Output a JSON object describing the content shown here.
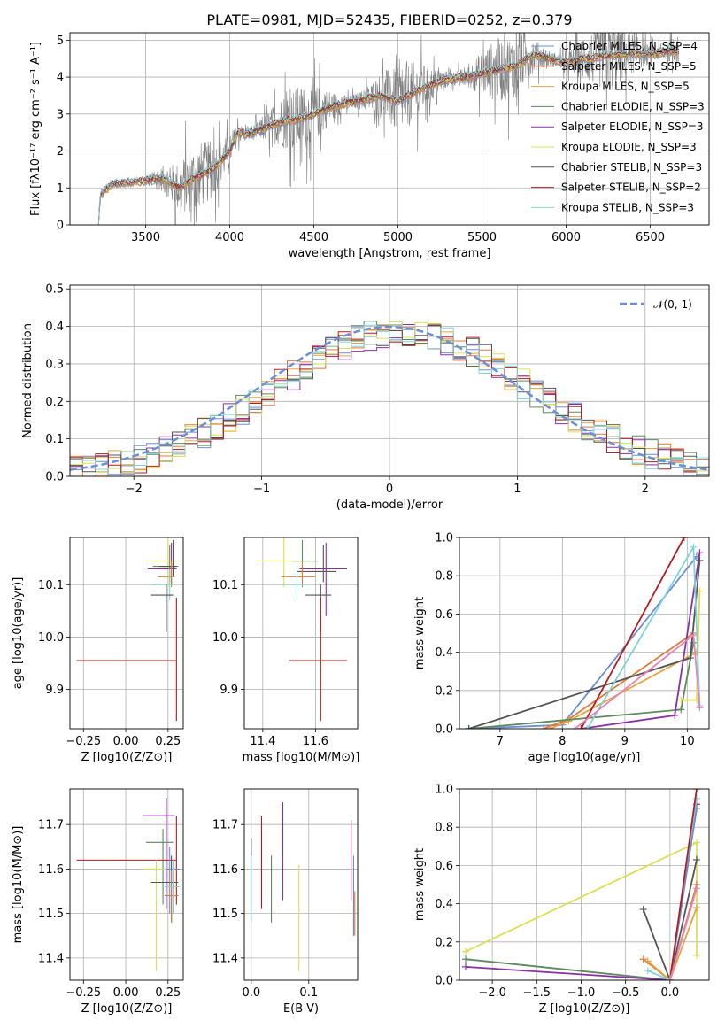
{
  "colors": {
    "chabrier_miles": "#6a8fd8",
    "salpeter_miles": "#e1793a",
    "kroupa_miles": "#e8a33c",
    "chabrier_elodie": "#5d8a5d",
    "salpeter_elodie": "#8b2fa8",
    "kroupa_elodie": "#dbe052",
    "chabrier_stelib": "#555555",
    "salpeter_stelib": "#b71c1c",
    "kroupa_stelib": "#7fd4dc",
    "pink": "#e882b7",
    "data": "#808080",
    "normal": "#6a8fd8",
    "grid": "#b0b0b0"
  },
  "chart_data": [
    {
      "type": "line",
      "title": "PLATE=0981, MJD=52435, FIBERID=0252, z=0.379",
      "xlabel": "wavelength [Angstrom, rest frame]",
      "ylabel": "Flux [fλ10⁻¹⁷ erg cm⁻² s⁻¹ A⁻¹]",
      "xlim": [
        3050,
        6850
      ],
      "ylim": [
        0,
        5.2
      ],
      "xticks": [
        3500,
        4000,
        4500,
        5000,
        5500,
        6000,
        6500
      ],
      "yticks": [
        0,
        1,
        2,
        3,
        4,
        5
      ],
      "legend": {
        "placement": "upper right",
        "entries": [
          "Chabrier MILES, N_SSP=4",
          "Salpeter MILES, N_SSP=5",
          "Kroupa MILES, N_SSP=5",
          "Chabrier ELODIE, N_SSP=3",
          "Salpeter ELODIE, N_SSP=3",
          "Kroupa ELODIE, N_SSP=3",
          "Chabrier STELIB, N_SSP=3",
          "Salpeter STELIB, N_SSP=2",
          "Kroupa STELIB, N_SSP=3"
        ]
      },
      "model_continuum": {
        "x": [
          3220,
          3230,
          3300,
          3400,
          3500,
          3600,
          3700,
          3800,
          3900,
          3950,
          4000,
          4050,
          4100,
          4200,
          4300,
          4400,
          4500,
          4600,
          4700,
          4800,
          4900,
          5000,
          5100,
          5200,
          5300,
          5400,
          5500,
          5600,
          5700,
          5800,
          5900,
          6000,
          6100,
          6200,
          6300,
          6400,
          6500,
          6600,
          6670
        ],
        "y": [
          0.0,
          0.8,
          1.1,
          1.15,
          1.2,
          1.25,
          1.0,
          1.3,
          1.5,
          1.75,
          2.0,
          2.5,
          2.45,
          2.6,
          2.8,
          2.85,
          3.0,
          3.2,
          3.3,
          3.4,
          3.5,
          3.35,
          3.6,
          3.8,
          3.95,
          4.0,
          4.1,
          4.2,
          4.3,
          4.6,
          4.5,
          4.4,
          4.5,
          4.55,
          4.6,
          4.65,
          4.6,
          4.7,
          4.7
        ]
      },
      "data_region": [
        3500,
        6670
      ]
    },
    {
      "type": "line",
      "xlabel": "(data-model)/error",
      "ylabel": "Normed distribution",
      "xlim": [
        -2.5,
        2.5
      ],
      "ylim": [
        0,
        0.51
      ],
      "xticks": [
        -2,
        -1,
        0,
        1,
        2
      ],
      "yticks": [
        0.0,
        0.1,
        0.2,
        0.3,
        0.4,
        0.5
      ],
      "legend": {
        "placement": "upper right",
        "entries": [
          "𝒩(0, 1)"
        ]
      },
      "series_note": "nine step histograms plus dashed standard normal curve"
    },
    {
      "type": "scatter",
      "xlabel": "Z [log10(Z/Z⊙)]",
      "ylabel": "age  [log10(age/yr)]",
      "xlim": [
        -0.33,
        0.34
      ],
      "ylim": [
        9.825,
        10.19
      ],
      "xticks": [
        -0.25,
        0.0,
        0.25
      ],
      "yticks": [
        9.9,
        10.0,
        10.1
      ],
      "points": [
        {
          "x": 0.25,
          "y": 10.145,
          "xerr": [
            0.13,
            0.05
          ],
          "yerr": [
            0.05,
            0.05
          ],
          "c": "kroupa_elodie"
        },
        {
          "x": 0.26,
          "y": 10.135,
          "xerr": [
            0.1,
            0.05
          ],
          "yerr": [
            0.03,
            0.04
          ],
          "c": "chabrier_elodie"
        },
        {
          "x": 0.27,
          "y": 10.13,
          "xerr": [
            0.14,
            0.03
          ],
          "yerr": [
            0.03,
            0.05
          ],
          "c": "salpeter_elodie"
        },
        {
          "x": 0.28,
          "y": 10.135,
          "xerr": [
            0.08,
            0.02
          ],
          "yerr": [
            0.02,
            0.05
          ],
          "c": "chabrier_stelib"
        },
        {
          "x": 0.27,
          "y": 10.115,
          "xerr": [
            0.08,
            0.02
          ],
          "yerr": [
            0.02,
            0.03
          ],
          "c": "salpeter_miles"
        },
        {
          "x": 0.26,
          "y": 10.1,
          "xerr": [
            0.1,
            0.03
          ],
          "yerr": [
            0.03,
            0.03
          ],
          "c": "kroupa_stelib"
        },
        {
          "x": 0.24,
          "y": 10.08,
          "xerr": [
            0.09,
            0.04
          ],
          "yerr": [
            0.07,
            0.02
          ],
          "c": "chabrier_stelib"
        },
        {
          "x": 0.3,
          "y": 9.955,
          "xerr": [
            0.59,
            0.0
          ],
          "yerr": [
            0.115,
            0.12
          ],
          "c": "salpeter_stelib"
        }
      ]
    },
    {
      "type": "scatter",
      "xlabel": "mass [log10(M/M⊙)]",
      "xlim": [
        11.33,
        11.76
      ],
      "ylim": [
        9.825,
        10.19
      ],
      "xticks": [
        11.4,
        11.6
      ],
      "yticks": [
        9.9,
        10.0,
        10.1
      ],
      "points": [
        {
          "x": 11.48,
          "y": 10.145,
          "xerr": [
            0.1,
            0.12
          ],
          "yerr": [
            0.05,
            0.05
          ],
          "c": "kroupa_elodie"
        },
        {
          "x": 11.55,
          "y": 10.145,
          "xerr": [
            0.04,
            0.06
          ],
          "yerr": [
            0.03,
            0.04
          ],
          "c": "chabrier_elodie"
        },
        {
          "x": 11.64,
          "y": 10.13,
          "xerr": [
            0.1,
            0.08
          ],
          "yerr": [
            0.09,
            0.05
          ],
          "c": "salpeter_elodie"
        },
        {
          "x": 11.63,
          "y": 10.125,
          "xerr": [
            0.1,
            0.05
          ],
          "yerr": [
            0.02,
            0.05
          ],
          "c": "chabrier_stelib"
        },
        {
          "x": 11.55,
          "y": 10.115,
          "xerr": [
            0.08,
            0.05
          ],
          "yerr": [
            0.02,
            0.03
          ],
          "c": "salpeter_miles"
        },
        {
          "x": 11.53,
          "y": 10.1,
          "xerr": [
            0.06,
            0.05
          ],
          "yerr": [
            0.03,
            0.03
          ],
          "c": "kroupa_stelib"
        },
        {
          "x": 11.62,
          "y": 10.08,
          "xerr": [
            0.06,
            0.04
          ],
          "yerr": [
            0.07,
            0.02
          ],
          "c": "chabrier_stelib"
        },
        {
          "x": 11.62,
          "y": 9.955,
          "xerr": [
            0.12,
            0.1
          ],
          "yerr": [
            0.115,
            0.12
          ],
          "c": "salpeter_stelib"
        }
      ]
    },
    {
      "type": "line",
      "xlabel": "age  [log10(age/yr)]",
      "ylabel": "mass weight",
      "xlim": [
        6.35,
        10.35
      ],
      "ylim": [
        0,
        1.0
      ],
      "xticks": [
        7,
        8,
        9,
        10
      ],
      "yticks": [
        0.0,
        0.2,
        0.4,
        0.6,
        0.8,
        1.0
      ],
      "series": [
        {
          "c": "chabrier_miles",
          "x": [
            6.5,
            8.0,
            10.15
          ],
          "y": [
            0.0,
            0.02,
            0.9
          ]
        },
        {
          "c": "salpeter_miles",
          "x": [
            7.7,
            8.1,
            10.1
          ],
          "y": [
            0.0,
            0.05,
            0.5
          ]
        },
        {
          "c": "kroupa_miles",
          "x": [
            7.8,
            8.1,
            10.15
          ],
          "y": [
            0.0,
            0.04,
            0.4
          ]
        },
        {
          "c": "chabrier_elodie",
          "x": [
            6.5,
            9.9,
            10.1
          ],
          "y": [
            0.0,
            0.1,
            0.45
          ]
        },
        {
          "c": "salpeter_elodie",
          "x": [
            8.3,
            9.8,
            10.2
          ],
          "y": [
            0.0,
            0.07,
            0.92
          ]
        },
        {
          "c": "kroupa_elodie",
          "x": [
            9.9,
            10.15,
            10.2
          ],
          "y": [
            0.15,
            0.15,
            0.72
          ]
        },
        {
          "c": "chabrier_stelib",
          "x": [
            6.5,
            10.05,
            10.2
          ],
          "y": [
            0.0,
            0.37,
            0.88
          ]
        },
        {
          "c": "salpeter_stelib",
          "x": [
            8.3,
            9.95
          ],
          "y": [
            0.0,
            1.0
          ]
        },
        {
          "c": "kroupa_stelib",
          "x": [
            8.4,
            10.1,
            10.2
          ],
          "y": [
            0.0,
            0.95,
            0.12
          ]
        },
        {
          "c": "pink",
          "x": [
            8.2,
            10.1,
            10.2
          ],
          "y": [
            0.0,
            0.49,
            0.11
          ]
        }
      ]
    },
    {
      "type": "scatter",
      "xlabel": "Z [log10(Z/Z⊙)]",
      "ylabel": "mass [log10(M/M⊙)]",
      "xlim": [
        -0.33,
        0.34
      ],
      "ylim": [
        11.35,
        11.78
      ],
      "xticks": [
        -0.25,
        0.0,
        0.25
      ],
      "yticks": [
        11.4,
        11.5,
        11.6,
        11.7
      ],
      "points": [
        {
          "x": 0.24,
          "y": 11.72,
          "xerr": [
            0.14,
            0.05
          ],
          "yerr": [
            0.21,
            0.04
          ],
          "c": "salpeter_elodie"
        },
        {
          "x": 0.22,
          "y": 11.66,
          "xerr": [
            0.1,
            0.06
          ],
          "yerr": [
            0.14,
            0.03
          ],
          "c": "chabrier_elodie"
        },
        {
          "x": 0.3,
          "y": 11.62,
          "xerr": [
            0.59,
            0.0
          ],
          "yerr": [
            0.1,
            0.1
          ],
          "c": "salpeter_stelib"
        },
        {
          "x": 0.26,
          "y": 11.6,
          "xerr": [
            0.05,
            0.06
          ],
          "yerr": [
            0.1,
            0.05
          ],
          "c": "chabrier_miles"
        },
        {
          "x": 0.18,
          "y": 11.6,
          "xerr": [
            0.08,
            0.06
          ],
          "yerr": [
            0.23,
            0.02
          ],
          "c": "kroupa_elodie"
        },
        {
          "x": 0.27,
          "y": 11.57,
          "xerr": [
            0.12,
            0.04
          ],
          "yerr": [
            0.09,
            0.06
          ],
          "c": "chabrier_stelib"
        },
        {
          "x": 0.27,
          "y": 11.54,
          "xerr": [
            0.04,
            0.04
          ],
          "yerr": [
            0.06,
            0.06
          ],
          "c": "salpeter_miles"
        },
        {
          "x": 0.28,
          "y": 11.56,
          "xerr": [
            0.05,
            0.04
          ],
          "yerr": [
            0.06,
            0.06
          ],
          "c": "kroupa_stelib"
        }
      ]
    },
    {
      "type": "scatter",
      "xlabel": "E(B-V)",
      "xlim": [
        -0.012,
        0.185
      ],
      "ylim": [
        11.35,
        11.78
      ],
      "xticks": [
        0.0,
        0.1
      ],
      "yticks": [
        11.4,
        11.5,
        11.6,
        11.7
      ],
      "points": [
        {
          "x": 0.0,
          "y": 11.6,
          "yerr": [
            0.12,
            0.07
          ],
          "c": "kroupa_stelib"
        },
        {
          "x": 0.0,
          "y": 11.66,
          "yerr": [
            0.03,
            0.01
          ],
          "c": "chabrier_stelib"
        },
        {
          "x": 0.018,
          "y": 11.62,
          "yerr": [
            0.11,
            0.1
          ],
          "c": "salpeter_stelib"
        },
        {
          "x": 0.035,
          "y": 11.57,
          "yerr": [
            0.09,
            0.06
          ],
          "c": "chabrier_elodie"
        },
        {
          "x": 0.055,
          "y": 11.64,
          "yerr": [
            0.11,
            0.11
          ],
          "c": "salpeter_elodie"
        },
        {
          "x": 0.083,
          "y": 11.5,
          "yerr": [
            0.13,
            0.11
          ],
          "c": "kroupa_elodie"
        },
        {
          "x": 0.174,
          "y": 11.62,
          "yerr": [
            0.09,
            0.09
          ],
          "c": "pink"
        },
        {
          "x": 0.178,
          "y": 11.55,
          "yerr": [
            0.1,
            0.08
          ],
          "c": "chabrier_miles"
        },
        {
          "x": 0.18,
          "y": 11.5,
          "yerr": [
            0.05,
            0.05
          ],
          "c": "salpeter_miles"
        }
      ]
    },
    {
      "type": "line",
      "xlabel": "Z [log10(Z/Z⊙)]",
      "ylabel": "mass weight",
      "xlim": [
        -2.37,
        0.44
      ],
      "ylim": [
        0,
        1.0
      ],
      "xticks": [
        -2.0,
        -1.5,
        -1.0,
        -0.5,
        0.0
      ],
      "yticks": [
        0.0,
        0.2,
        0.4,
        0.6,
        0.8,
        1.0
      ],
      "series": [
        {
          "c": "kroupa_elodie",
          "x": [
            -2.3,
            0.3,
            0.3
          ],
          "y": [
            0.15,
            0.72,
            0.13
          ]
        },
        {
          "c": "chabrier_elodie",
          "x": [
            -2.3,
            0.0,
            0.3
          ],
          "y": [
            0.11,
            0.0,
            0.9
          ]
        },
        {
          "c": "salpeter_elodie",
          "x": [
            -2.3,
            0.0,
            0.3
          ],
          "y": [
            0.07,
            0.0,
            0.92
          ]
        },
        {
          "c": "chabrier_stelib",
          "x": [
            -0.3,
            0.0,
            0.3
          ],
          "y": [
            0.37,
            0.0,
            0.63
          ]
        },
        {
          "c": "salpeter_miles",
          "x": [
            -0.3,
            0.0,
            0.3
          ],
          "y": [
            0.11,
            0.0,
            0.5
          ]
        },
        {
          "c": "kroupa_miles",
          "x": [
            -0.25,
            0.0,
            0.3
          ],
          "y": [
            0.1,
            0.0,
            0.38
          ]
        },
        {
          "c": "kroupa_stelib",
          "x": [
            -0.25,
            0.0,
            0.3
          ],
          "y": [
            0.05,
            0.0,
            0.95
          ]
        },
        {
          "c": "chabrier_miles",
          "x": [
            0.0,
            0.3
          ],
          "y": [
            0.0,
            0.9
          ]
        },
        {
          "c": "salpeter_stelib",
          "x": [
            0.0,
            0.3
          ],
          "y": [
            0.0,
            1.0
          ]
        },
        {
          "c": "pink",
          "x": [
            0.0,
            0.3
          ],
          "y": [
            0.0,
            0.48
          ]
        }
      ]
    }
  ]
}
